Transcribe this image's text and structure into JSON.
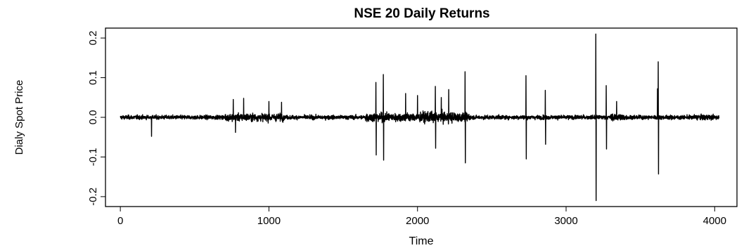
{
  "chart_data": {
    "type": "line",
    "title": "NSE 20 Daily Returns",
    "xlabel": "Time",
    "ylabel": "Dialy Spot Price",
    "xlim": [
      -100,
      4150
    ],
    "ylim": [
      -0.225,
      0.225
    ],
    "x_ticks": [
      0,
      1000,
      2000,
      3000,
      4000
    ],
    "x_tick_labels": [
      "0",
      "1000",
      "2000",
      "3000",
      "4000"
    ],
    "y_ticks": [
      -0.2,
      -0.1,
      0.0,
      0.1,
      0.2
    ],
    "y_tick_labels": [
      "-0.2",
      "-0.1",
      "0.0",
      "0.1",
      "0.2"
    ],
    "grid": false,
    "line_color": "#000000",
    "series": [
      {
        "n_points": 4030,
        "spikes": [
          {
            "x": 210,
            "y": -0.048
          },
          {
            "x": 760,
            "y": 0.045
          },
          {
            "x": 775,
            "y": -0.038
          },
          {
            "x": 830,
            "y": 0.048
          },
          {
            "x": 1000,
            "y": 0.04
          },
          {
            "x": 1085,
            "y": 0.038
          },
          {
            "x": 1720,
            "y": 0.088
          },
          {
            "x": 1722,
            "y": -0.095
          },
          {
            "x": 1770,
            "y": 0.108
          },
          {
            "x": 1772,
            "y": -0.108
          },
          {
            "x": 1920,
            "y": 0.06
          },
          {
            "x": 2000,
            "y": 0.055
          },
          {
            "x": 2120,
            "y": 0.078
          },
          {
            "x": 2122,
            "y": -0.078
          },
          {
            "x": 2160,
            "y": 0.05
          },
          {
            "x": 2210,
            "y": 0.07
          },
          {
            "x": 2320,
            "y": 0.115
          },
          {
            "x": 2322,
            "y": -0.115
          },
          {
            "x": 2730,
            "y": 0.105
          },
          {
            "x": 2732,
            "y": -0.105
          },
          {
            "x": 2860,
            "y": 0.068
          },
          {
            "x": 2862,
            "y": -0.068
          },
          {
            "x": 3200,
            "y": 0.21
          },
          {
            "x": 3202,
            "y": -0.21
          },
          {
            "x": 3270,
            "y": 0.08
          },
          {
            "x": 3272,
            "y": -0.08
          },
          {
            "x": 3340,
            "y": 0.04
          },
          {
            "x": 3620,
            "y": 0.14
          },
          {
            "x": 3622,
            "y": -0.143
          },
          {
            "x": 3615,
            "y": 0.072
          }
        ]
      }
    ]
  }
}
